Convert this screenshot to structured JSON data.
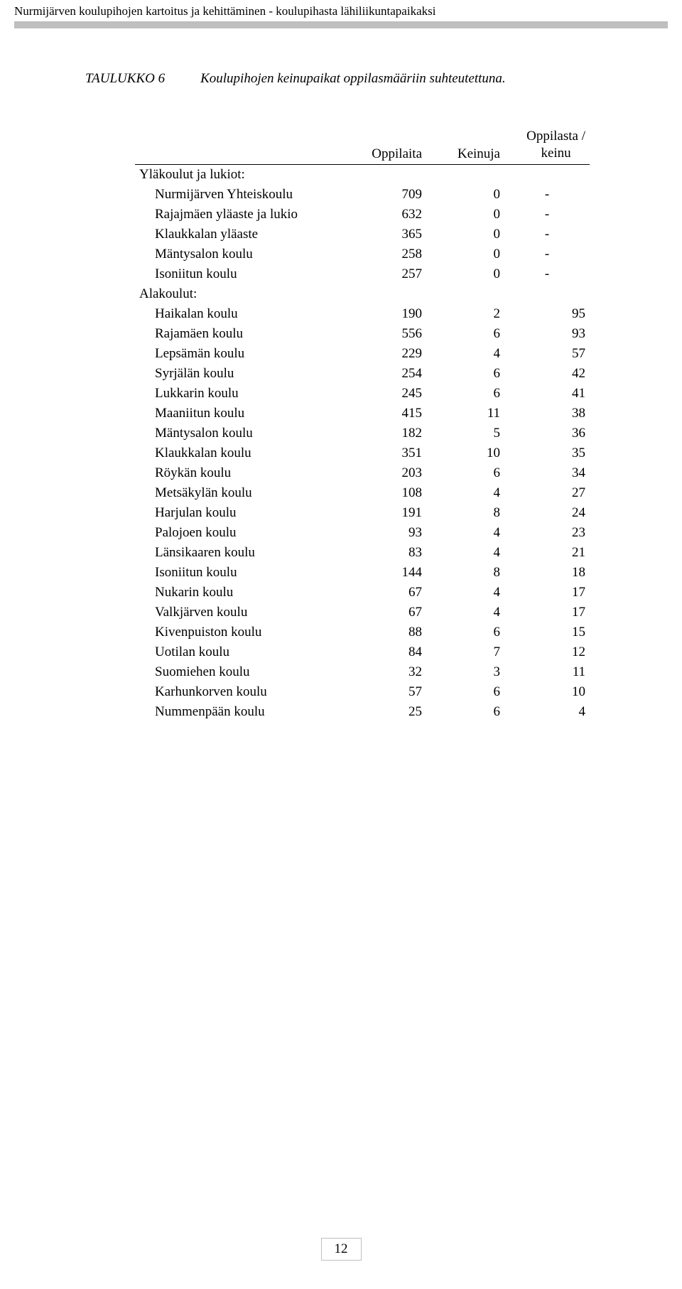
{
  "header": {
    "running_title": "Nurmijärven koulupihojen kartoitus ja kehittäminen - koulupihasta lähiliikuntapaikaksi"
  },
  "caption": {
    "label": "TAULUKKO 6",
    "text": "Koulupihojen keinupaikat oppilasmääriin suhteutettuna."
  },
  "table": {
    "columns": {
      "c0": "",
      "c1": "Oppilaita",
      "c2": "Keinuja",
      "c3a": "Oppilasta /",
      "c3b": "keinu"
    },
    "section1_label": "Yläkoulut ja lukiot:",
    "section1": [
      {
        "name": "Nurmijärven Yhteiskoulu",
        "a": "709",
        "b": "0",
        "c": "-"
      },
      {
        "name": "Rajajmäen yläaste ja lukio",
        "a": "632",
        "b": "0",
        "c": "-"
      },
      {
        "name": "Klaukkalan yläaste",
        "a": "365",
        "b": "0",
        "c": "-"
      },
      {
        "name": "Mäntysalon koulu",
        "a": "258",
        "b": "0",
        "c": "-"
      },
      {
        "name": "Isoniitun koulu",
        "a": "257",
        "b": "0",
        "c": "-"
      }
    ],
    "section2_label": "Alakoulut:",
    "section2": [
      {
        "name": "Haikalan koulu",
        "a": "190",
        "b": "2",
        "c": "95"
      },
      {
        "name": "Rajamäen koulu",
        "a": "556",
        "b": "6",
        "c": "93"
      },
      {
        "name": "Lepsämän koulu",
        "a": "229",
        "b": "4",
        "c": "57"
      },
      {
        "name": "Syrjälän koulu",
        "a": "254",
        "b": "6",
        "c": "42"
      },
      {
        "name": "Lukkarin koulu",
        "a": "245",
        "b": "6",
        "c": "41"
      },
      {
        "name": "Maaniitun koulu",
        "a": "415",
        "b": "11",
        "c": "38"
      },
      {
        "name": "Mäntysalon koulu",
        "a": "182",
        "b": "5",
        "c": "36"
      },
      {
        "name": "Klaukkalan koulu",
        "a": "351",
        "b": "10",
        "c": "35"
      },
      {
        "name": "Röykän koulu",
        "a": "203",
        "b": "6",
        "c": "34"
      },
      {
        "name": "Metsäkylän koulu",
        "a": "108",
        "b": "4",
        "c": "27"
      },
      {
        "name": "Harjulan koulu",
        "a": "191",
        "b": "8",
        "c": "24"
      },
      {
        "name": "Palojoen koulu",
        "a": "93",
        "b": "4",
        "c": "23"
      },
      {
        "name": "Länsikaaren koulu",
        "a": "83",
        "b": "4",
        "c": "21"
      },
      {
        "name": "Isoniitun koulu",
        "a": "144",
        "b": "8",
        "c": "18"
      },
      {
        "name": "Nukarin koulu",
        "a": "67",
        "b": "4",
        "c": "17"
      },
      {
        "name": "Valkjärven koulu",
        "a": "67",
        "b": "4",
        "c": "17"
      },
      {
        "name": "Kivenpuiston koulu",
        "a": "88",
        "b": "6",
        "c": "15"
      },
      {
        "name": "Uotilan koulu",
        "a": "84",
        "b": "7",
        "c": "12"
      },
      {
        "name": "Suomiehen koulu",
        "a": "32",
        "b": "3",
        "c": "11"
      },
      {
        "name": "Karhunkorven koulu",
        "a": "57",
        "b": "6",
        "c": "10"
      },
      {
        "name": "Nummenpään koulu",
        "a": "25",
        "b": "6",
        "c": "4"
      }
    ]
  },
  "footer": {
    "page_number": "12"
  },
  "style": {
    "page_bg": "#ffffff",
    "rule_color": "#bfbfbf",
    "text_color": "#000000",
    "body_font_size_pt": 14,
    "header_font_size_pt": 13
  }
}
